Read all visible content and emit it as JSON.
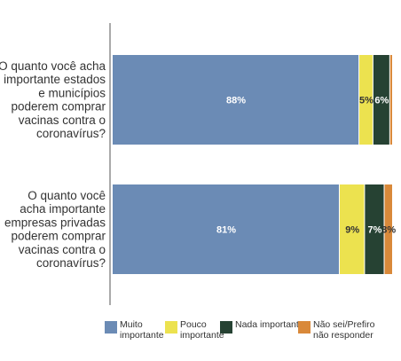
{
  "chart_data": {
    "type": "bar",
    "orientation": "horizontal",
    "stacked": true,
    "categories": [
      "O quanto você acha importante estados e municípios poderem comprar vacinas contra o coronavírus?",
      "O quanto você acha importante empresas privadas poderem comprar vacinas contra o coronavírus?"
    ],
    "category_lines": [
      [
        "O quanto você acha",
        "importante estados",
        "e municípios",
        "poderem comprar",
        "vacinas contra o",
        "coronavírus?"
      ],
      [
        "O quanto você",
        "acha importante",
        "empresas privadas",
        "poderem comprar",
        "vacinas contra o",
        "coronavírus?"
      ]
    ],
    "series": [
      {
        "name": "Muito\nimportante",
        "color": "#6b8bb5",
        "values": [
          88,
          81
        ],
        "labels": [
          "88%",
          "81%"
        ],
        "label_color": "#ffffff"
      },
      {
        "name": "Pouco\nimportante",
        "color": "#ece24f",
        "values": [
          5,
          9
        ],
        "labels": [
          "5%",
          "9%"
        ],
        "label_color": "#333333"
      },
      {
        "name": "Nada importante",
        "color": "#264233",
        "values": [
          6,
          7
        ],
        "labels": [
          "6%",
          "7%"
        ],
        "label_color": "#ffffff"
      },
      {
        "name": "Não sei/Prefiro\nnão responder",
        "color": "#d9893a",
        "values": [
          1,
          3
        ],
        "labels": [
          "",
          "3%"
        ],
        "label_color": "#333333"
      }
    ],
    "xlim": [
      0,
      100
    ],
    "grid": false,
    "legend_position": "bottom"
  }
}
